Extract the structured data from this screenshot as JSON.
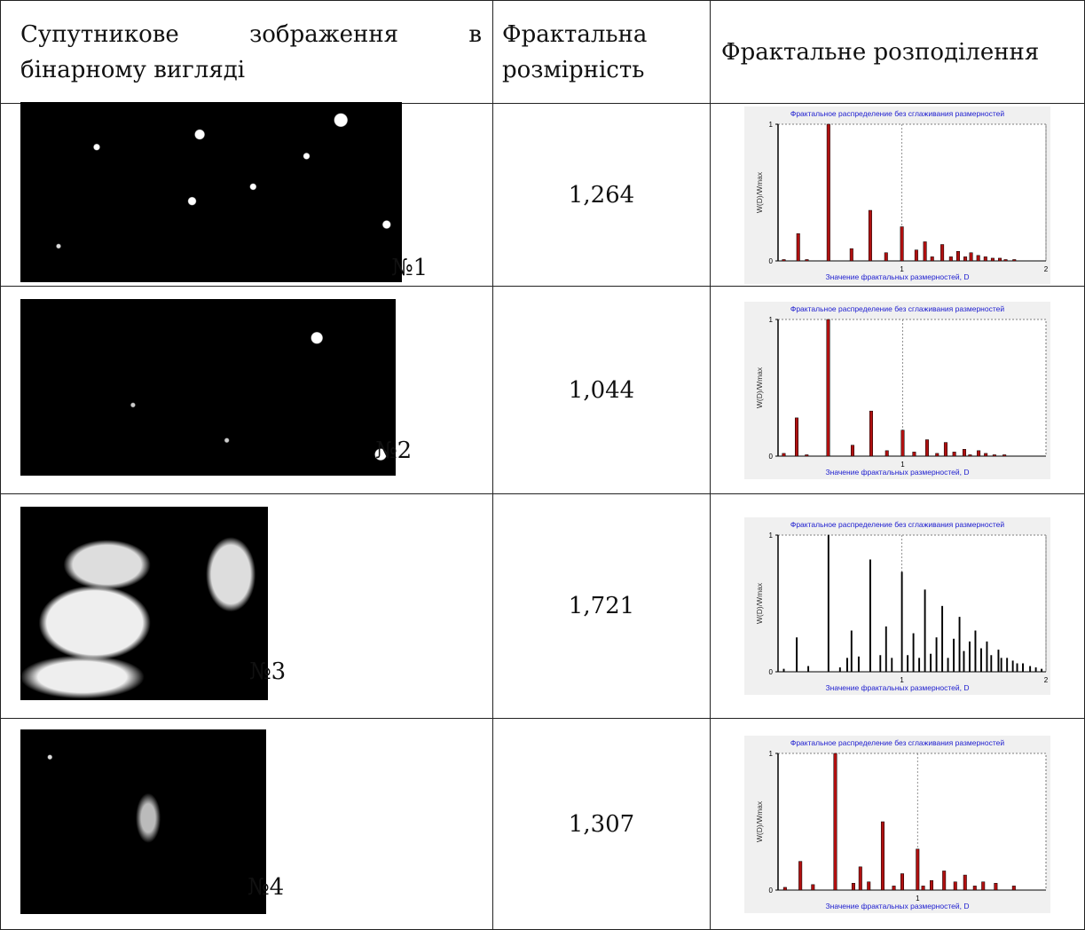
{
  "table": {
    "header": [
      "Супутникове зображення в бінарному вигляді",
      "Фрактальна розмірність",
      "Фрактальне розподілення"
    ],
    "rows": [
      {
        "label": "№1",
        "dimension": "1,264",
        "chart": {
          "type": "bar",
          "title": "Фрактальное распределение без сглаживания размерностей",
          "y_label": "W(D)/Wmax",
          "x_label": "Значение фрактальных размерностей, D",
          "color": "#b01010",
          "xlim": [
            0.14,
            2.0
          ],
          "xticks": [
            1,
            2
          ],
          "ylim": [
            0,
            1
          ],
          "yticks": [
            0,
            1
          ],
          "x": [
            0.18,
            0.28,
            0.34,
            0.49,
            0.65,
            0.78,
            0.89,
            1,
            1.1,
            1.16,
            1.21,
            1.28,
            1.34,
            1.39,
            1.44,
            1.48,
            1.53,
            1.58,
            1.63,
            1.68,
            1.72,
            1.78
          ],
          "values": [
            0.01,
            0.2,
            0.01,
            1.0,
            0.09,
            0.37,
            0.06,
            0.25,
            0.08,
            0.14,
            0.03,
            0.12,
            0.03,
            0.07,
            0.03,
            0.06,
            0.04,
            0.03,
            0.02,
            0.02,
            0.01,
            0.01
          ]
        }
      },
      {
        "label": "№2",
        "dimension": "1,044",
        "chart": {
          "type": "bar",
          "title": "Фрактальное распределение без сглаживания размерностей",
          "y_label": "W(D)/Wmax",
          "x_label": "Значение фрактальных размерностей, D",
          "color": "#b01010",
          "xlim": [
            0.13,
            2.0
          ],
          "xticks": [
            1
          ],
          "ylim": [
            0,
            1
          ],
          "yticks": [
            0,
            1
          ],
          "x": [
            0.17,
            0.26,
            0.33,
            0.48,
            0.65,
            0.78,
            0.89,
            1,
            1.08,
            1.17,
            1.24,
            1.3,
            1.36,
            1.43,
            1.47,
            1.53,
            1.58,
            1.64,
            1.71
          ],
          "values": [
            0.02,
            0.28,
            0.01,
            1.0,
            0.08,
            0.33,
            0.04,
            0.19,
            0.03,
            0.12,
            0.02,
            0.1,
            0.03,
            0.05,
            0.01,
            0.04,
            0.02,
            0.01,
            0.01
          ]
        }
      },
      {
        "label": "№3",
        "dimension": "1,721",
        "chart": {
          "type": "bar",
          "title": "Фрактальное распределение без сглаживания размерностей",
          "y_label": "W(D)/Wmax",
          "x_label": "Значение фрактальных размерностей, D",
          "color": "#000000",
          "xlim": [
            0.14,
            2.0
          ],
          "xticks": [
            1,
            2
          ],
          "ylim": [
            0,
            1
          ],
          "yticks": [
            0,
            1
          ],
          "x": [
            0.18,
            0.27,
            0.35,
            0.49,
            0.57,
            0.62,
            0.65,
            0.7,
            0.78,
            0.85,
            0.89,
            0.93,
            1,
            1.04,
            1.08,
            1.12,
            1.16,
            1.2,
            1.24,
            1.28,
            1.32,
            1.36,
            1.4,
            1.43,
            1.47,
            1.51,
            1.55,
            1.59,
            1.62,
            1.67,
            1.69,
            1.73,
            1.77,
            1.8,
            1.84,
            1.89,
            1.93,
            1.97
          ],
          "values": [
            0.02,
            0.25,
            0.04,
            1.0,
            0.03,
            0.1,
            0.3,
            0.11,
            0.82,
            0.12,
            0.33,
            0.1,
            0.73,
            0.12,
            0.28,
            0.1,
            0.6,
            0.13,
            0.25,
            0.48,
            0.1,
            0.24,
            0.4,
            0.15,
            0.22,
            0.3,
            0.17,
            0.22,
            0.12,
            0.16,
            0.1,
            0.1,
            0.08,
            0.06,
            0.06,
            0.04,
            0.03,
            0.02
          ]
        }
      },
      {
        "label": "№4",
        "dimension": "1,307",
        "chart": {
          "type": "bar",
          "title": "Фрактальное распределение без сглаживания размерностей",
          "y_label": "W(D)/Wmax",
          "x_label": "Значение фрактальных размерностей, D",
          "color": "#b01010",
          "xlim": [
            0,
            1.92
          ],
          "xticks": [
            1
          ],
          "ylim": [
            0,
            1
          ],
          "yticks": [
            0,
            1
          ],
          "x": [
            0.05,
            0.16,
            0.25,
            0.41,
            0.54,
            0.59,
            0.65,
            0.75,
            0.83,
            0.89,
            1,
            1.04,
            1.1,
            1.19,
            1.27,
            1.34,
            1.41,
            1.47,
            1.56,
            1.69
          ],
          "values": [
            0.02,
            0.21,
            0.04,
            1.0,
            0.05,
            0.17,
            0.06,
            0.5,
            0.03,
            0.12,
            0.3,
            0.03,
            0.07,
            0.14,
            0.06,
            0.11,
            0.03,
            0.06,
            0.05,
            0.03
          ]
        }
      }
    ]
  }
}
